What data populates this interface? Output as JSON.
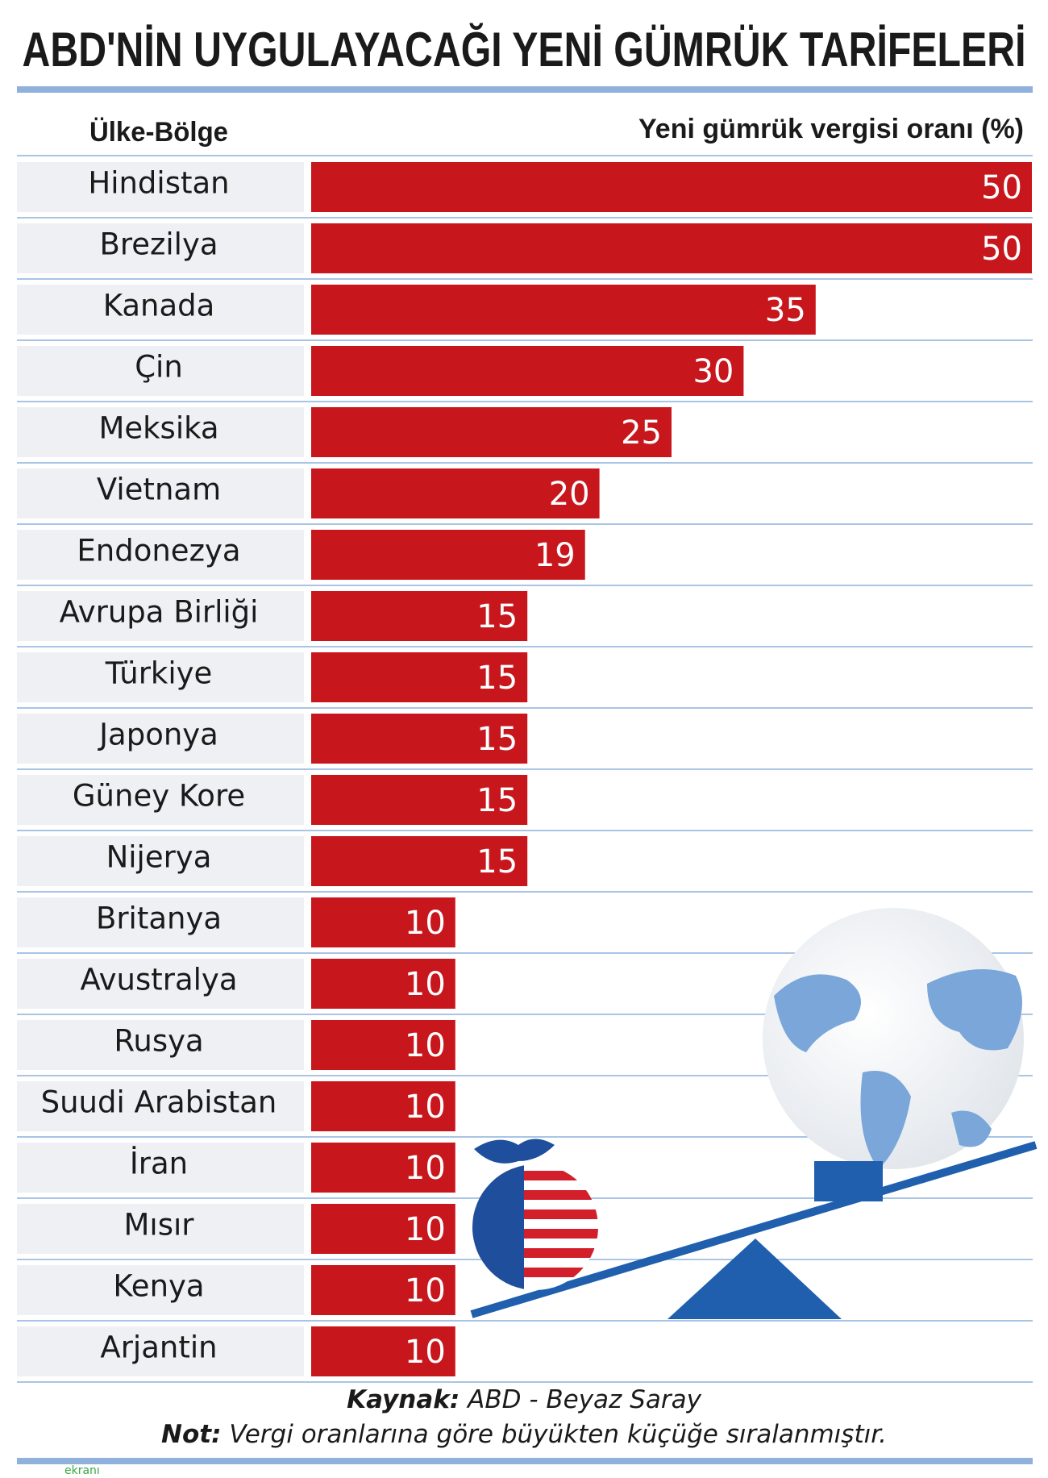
{
  "chart_data": {
    "type": "bar",
    "title": "ABD'NİN UYGULAYACAĞI YENİ GÜMRÜK TARİFELERİ",
    "category_label": "Ülke-Bölge",
    "value_label": "Yeni gümrük vergisi oranı (%)",
    "categories": [
      "Hindistan",
      "Brezilya",
      "Kanada",
      "Çin",
      "Meksika",
      "Vietnam",
      "Endonezya",
      "Avrupa Birliği",
      "Türkiye",
      "Japonya",
      "Güney Kore",
      "Nijerya",
      "Britanya",
      "Avustralya",
      "Rusya",
      "Suudi Arabistan",
      "İran",
      "Mısır",
      "Kenya",
      "Arjantin"
    ],
    "values": [
      50,
      50,
      35,
      30,
      25,
      20,
      19,
      15,
      15,
      15,
      15,
      15,
      10,
      10,
      10,
      10,
      10,
      10,
      10,
      10
    ],
    "color": "#c8161d",
    "source_label": "Kaynak:",
    "source": "ABD - Beyaz Saray",
    "note_label": "Not:",
    "note": "Vergi oranlarına göre büyükten küçüğe sıralanmıştır."
  },
  "watermark": "ekranı"
}
